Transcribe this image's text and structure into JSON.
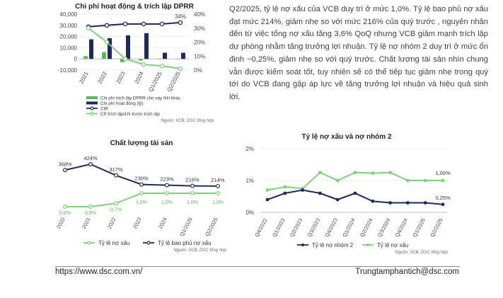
{
  "paragraph": "Q2/2025, tỷ lệ nợ xấu của VCB duy trì ở mức 1,0%. Tỷ lệ bao phủ nợ xấu đạt mức 214%, giảm nhẹ so với mức 216% của quý trước , nguyên nhân đến từ việc tổng nợ xấu tăng 3,6% QoQ nhưng VCB giảm mạnh trích lập dự phòng nhằm tăng trưởng lợi nhuận. Tỷ lệ nợ nhóm 2 duy trì ở mức ổn định ~0,25%, giảm nhẹ so với quý trước. Chất lượng tài sản nhìn chung vẫn được kiểm soát tốt, tuy nhiên sẽ có thể tiếp tục giảm nhẹ trong quý tới do VCB đang gặp áp lực về tăng trưởng lợi nhuận và hiệu quả sinh lời.",
  "footer": {
    "url": "https://www.dsc.com.vn/",
    "email": "Trungtamphantich@dsc.com"
  },
  "colors": {
    "green": "#5cb85c",
    "light_green": "#7fd07a",
    "navy": "#1f2a5c"
  },
  "chart_data": [
    {
      "type": "bar",
      "title": "Chi phí hoạt động & trích lập DPRR",
      "categories": [
        "2021",
        "2022",
        "2023",
        "2024",
        "Q1/2025",
        "Q2/2025"
      ],
      "y_ticks": [
        "-10,000",
        "0",
        "10,000",
        "20,000",
        "30,000",
        "40,000"
      ],
      "y2_ticks": [
        "0%",
        "10%",
        "20%",
        "30%",
        "40%"
      ],
      "ylim": [
        -10000,
        40000
      ],
      "y2lim": [
        0,
        40
      ],
      "series": [
        {
          "name": "Chi phí trích lập DPRR cho vay NH khác",
          "kind": "bar",
          "values": [
            2500,
            6000,
            -3000,
            -1500,
            300,
            0
          ]
        },
        {
          "name": "Chi phí hoạt động (tỷ)",
          "kind": "bar",
          "values": [
            17500,
            18500,
            21000,
            23000,
            5500,
            5500
          ]
        },
        {
          "name": "CIR",
          "kind": "line",
          "axis": "right",
          "values": [
            31,
            32,
            33,
            33,
            33,
            34
          ]
        },
        {
          "name": "CP trích lập/LN trước trích lập",
          "kind": "line",
          "axis": "right",
          "values": [
            30,
            20,
            8,
            4,
            3,
            1
          ]
        }
      ],
      "annotations": [
        "34%"
      ],
      "source": "Nguồn: VCB, DSC tổng hợp"
    },
    {
      "type": "line",
      "title": "Chất lượng tài sản",
      "categories": [
        "2020",
        "2021",
        "2022",
        "2023",
        "2024",
        "Q1/2025",
        "Q2/2025"
      ],
      "series": [
        {
          "name": "Tỷ lệ nợ xấu",
          "values": [
            0.6,
            0.6,
            0.7,
            1.0,
            1.0,
            1.0,
            1.0
          ],
          "labels": [
            "0,6%",
            "0,6%",
            "0,7%",
            "1,0%",
            "1,0%",
            "1,0%",
            "1,0%"
          ]
        },
        {
          "name": "Tỷ lệ bao phủ nợ xấu",
          "values": [
            368,
            424,
            317,
            230,
            223,
            216,
            214
          ],
          "labels": [
            "368%",
            "424%",
            "317%",
            "230%",
            "223%",
            "216%",
            "214%"
          ]
        }
      ],
      "source": "Nguồn: VCB, DSC tổng hợp"
    },
    {
      "type": "line",
      "title": "Tỷ lệ nợ xấu và nợ nhóm 2",
      "categories": [
        "Q4/2022",
        "Q1/2023",
        "Q2/2023",
        "Q3/2023",
        "Q4/2023",
        "Q1/2024",
        "Q2/2024",
        "Q3/2024",
        "Q4/2024",
        "Q1/2025",
        "Q2/2025"
      ],
      "y_ticks": [
        "0%",
        "1%",
        "2%"
      ],
      "ylim": [
        0,
        2
      ],
      "series": [
        {
          "name": "Tỷ lệ nợ nhóm 2",
          "values": [
            0.4,
            0.6,
            0.7,
            0.6,
            0.4,
            0.6,
            0.35,
            0.3,
            0.3,
            0.3,
            0.25
          ]
        },
        {
          "name": "Tỷ lệ nợ xấu",
          "values": [
            0.7,
            0.8,
            0.75,
            1.25,
            1.0,
            1.25,
            1.23,
            1.25,
            1.0,
            1.0,
            1.0
          ]
        }
      ],
      "end_labels": [
        "1,00%",
        "0,25%"
      ],
      "source": "Nguồn: VCB, DSC tổng hợp"
    }
  ]
}
